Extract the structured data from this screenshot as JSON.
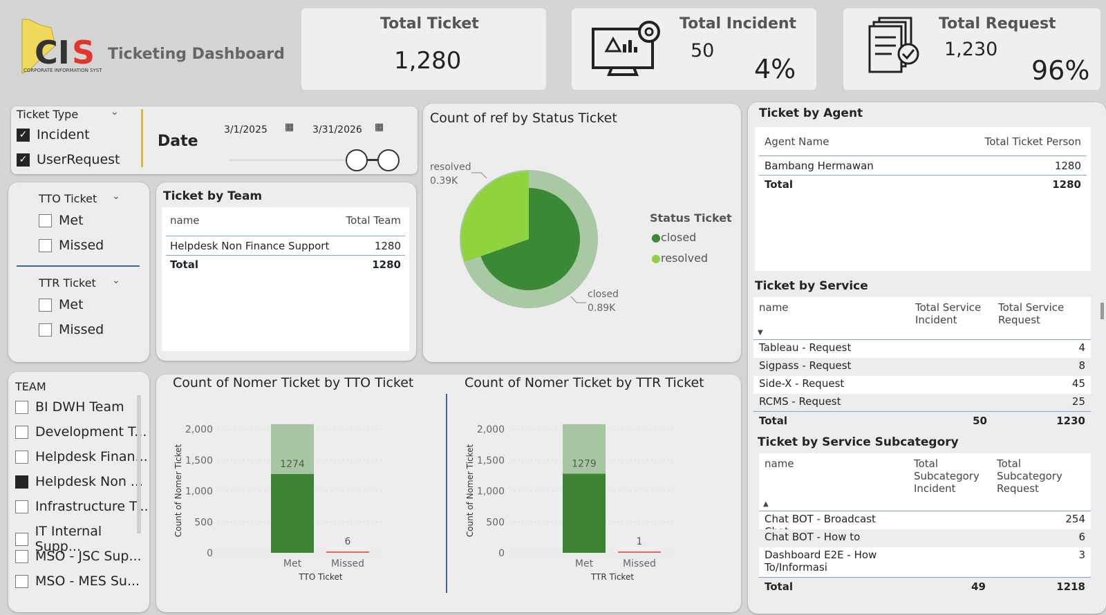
{
  "header": {
    "title": "Ticketing Dashboard",
    "logo_text": "CIS",
    "logo_subtext": "CORPORATE INFORMATION SYSTEM"
  },
  "kpi": {
    "total_ticket": {
      "label": "Total Ticket",
      "value": "1,280"
    },
    "total_incident": {
      "label": "Total Incident",
      "value": "50",
      "pct": "4%",
      "icon": "monitor-warning-gear-icon"
    },
    "total_request": {
      "label": "Total Request",
      "value": "1,230",
      "pct": "96%",
      "icon": "document-check-icon"
    }
  },
  "filters": {
    "ticket_type": {
      "label": "Ticket Type",
      "options": [
        {
          "label": "Incident",
          "checked": true
        },
        {
          "label": "UserRequest",
          "checked": true
        }
      ]
    },
    "date": {
      "label": "Date",
      "start": "3/1/2025",
      "end": "3/31/2026"
    },
    "tto": {
      "label": "TTO Ticket",
      "options": [
        {
          "label": "Met",
          "checked": false
        },
        {
          "label": "Missed",
          "checked": false
        }
      ]
    },
    "ttr": {
      "label": "TTR Ticket",
      "options": [
        {
          "label": "Met",
          "checked": false
        },
        {
          "label": "Missed",
          "checked": false
        }
      ]
    },
    "team": {
      "label": "TEAM",
      "options": [
        {
          "label": "BI DWH Team",
          "checked": false
        },
        {
          "label": "Development T...",
          "checked": false
        },
        {
          "label": "Helpdesk Finan...",
          "checked": false
        },
        {
          "label": "Helpdesk Non ...",
          "checked": true
        },
        {
          "label": "Infrastructure T...",
          "checked": false
        },
        {
          "label": "IT Internal Supp...",
          "checked": false
        },
        {
          "label": "MSO - JSC Sup...",
          "checked": false
        },
        {
          "label": "MSO - MES Su...",
          "checked": false
        }
      ]
    }
  },
  "team_table": {
    "title": "Ticket by Team",
    "columns": [
      "name",
      "Total Team"
    ],
    "rows": [
      [
        "Helpdesk Non Finance Support",
        "1280"
      ]
    ],
    "total": [
      "Total",
      "1280"
    ]
  },
  "agent_table": {
    "title": "Ticket by Agent",
    "columns": [
      "Agent Name",
      "Total Ticket Person"
    ],
    "rows": [
      [
        "Bambang Hermawan",
        "1280"
      ]
    ],
    "total": [
      "Total",
      "1280"
    ]
  },
  "service_table": {
    "title": "Ticket by Service",
    "columns": [
      "name",
      "Total Service Incident",
      "Total Service Request"
    ],
    "rows": [
      [
        "Tableau - Request",
        "",
        "4"
      ],
      [
        "Sigpass - Request",
        "",
        "8"
      ],
      [
        "Side-X - Request",
        "",
        "45"
      ],
      [
        "RCMS - Request",
        "",
        "25"
      ]
    ],
    "total": [
      "Total",
      "50",
      "1230"
    ]
  },
  "subcat_table": {
    "title": "Ticket by Service Subcategory",
    "columns": [
      "name",
      "Total Subcategory Incident",
      "Total Subcategory Request"
    ],
    "rows": [
      [
        "Chat BOT - Broadcast Chat",
        "",
        "254"
      ],
      [
        "Chat BOT - How to",
        "",
        "6"
      ],
      [
        "Dashboard E2E - How To/Informasi",
        "",
        "3"
      ]
    ],
    "total": [
      "Total",
      "49",
      "1218"
    ]
  },
  "chart_data": [
    {
      "type": "pie",
      "title": "Count of ref by Status Ticket",
      "legend_title": "Status Ticket",
      "legend_position": "right",
      "slices": [
        {
          "label": "closed",
          "value": 0.89,
          "display": "0.89K",
          "color": "#3a8a35"
        },
        {
          "label": "resolved",
          "value": 0.39,
          "display": "0.39K",
          "color": "#8fd43f"
        }
      ]
    },
    {
      "type": "bar",
      "title": "Count of Nomer Ticket by TTO Ticket",
      "xlabel": "TTO Ticket",
      "ylabel": "Count of Nomer Ticket",
      "categories": [
        "Met",
        "Missed"
      ],
      "values": [
        1274,
        6
      ],
      "ylim": [
        0,
        2000
      ],
      "yticks": [
        "0",
        "500",
        "1,000",
        "1,500",
        "2,000"
      ],
      "grid": true,
      "colors": [
        "#3d8535",
        "#e0685a"
      ]
    },
    {
      "type": "bar",
      "title": "Count of Nomer Ticket by TTR Ticket",
      "xlabel": "TTR Ticket",
      "ylabel": "Count of Nomer Ticket",
      "categories": [
        "Met",
        "Missed"
      ],
      "values": [
        1279,
        1
      ],
      "ylim": [
        0,
        2000
      ],
      "yticks": [
        "0",
        "500",
        "1,000",
        "1,500",
        "2,000"
      ],
      "grid": true,
      "colors": [
        "#3d8535",
        "#e0685a"
      ]
    }
  ]
}
